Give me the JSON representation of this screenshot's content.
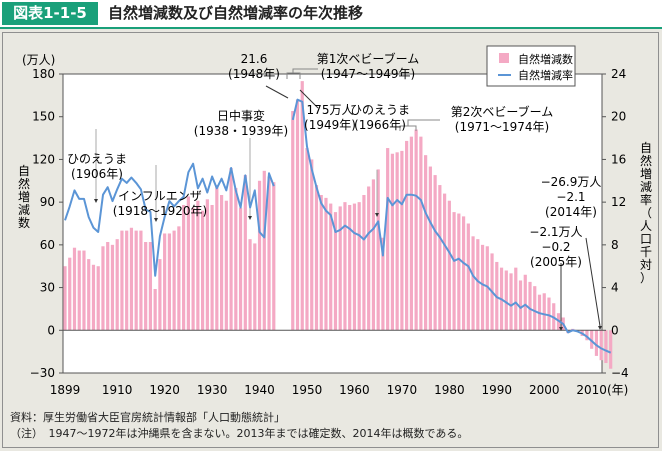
{
  "header": {
    "figure_label": "図表1-1-5",
    "title": "自然増減数及び自然増減率の年次推移"
  },
  "chart_data": {
    "type": "bar+line",
    "title": "自然増減数及び自然増減率の年次推移",
    "xlabel": "(年)",
    "ylabel_left": "自然増減数",
    "ylabel_left_unit": "(万人)",
    "ylabel_right": "自然増減率（人口千対）",
    "ylim_left": [
      -30,
      180
    ],
    "ylim_right": [
      -4,
      24
    ],
    "yticks_left": [
      180,
      150,
      120,
      90,
      60,
      30,
      0,
      -30
    ],
    "yticks_right": [
      24,
      20,
      16,
      12,
      8,
      4,
      0,
      -4
    ],
    "xticks": [
      "1899",
      "1910",
      "1920",
      "1930",
      "1940",
      "1950",
      "1960",
      "1970",
      "1980",
      "1990",
      "2000",
      "2010"
    ],
    "x_range": [
      1899,
      2014
    ],
    "grid": false,
    "legend": {
      "position": "top-right",
      "entries": [
        {
          "label": "自然増減数",
          "type": "bar",
          "color": "#f4a9c4"
        },
        {
          "label": "自然増減率",
          "type": "line",
          "color": "#5b95d6"
        }
      ]
    },
    "series": [
      {
        "name": "自然増減数",
        "type": "bar",
        "unit": "万人",
        "axis": "left",
        "x": [
          1899,
          1900,
          1901,
          1902,
          1903,
          1904,
          1905,
          1906,
          1907,
          1908,
          1909,
          1910,
          1911,
          1912,
          1913,
          1914,
          1915,
          1916,
          1917,
          1918,
          1919,
          1920,
          1921,
          1922,
          1923,
          1924,
          1925,
          1926,
          1927,
          1928,
          1929,
          1930,
          1931,
          1932,
          1933,
          1934,
          1935,
          1936,
          1937,
          1938,
          1939,
          1940,
          1941,
          1942,
          1943,
          1947,
          1948,
          1949,
          1950,
          1951,
          1952,
          1953,
          1954,
          1955,
          1956,
          1957,
          1958,
          1959,
          1960,
          1961,
          1962,
          1963,
          1964,
          1965,
          1966,
          1967,
          1968,
          1969,
          1970,
          1971,
          1972,
          1973,
          1974,
          1975,
          1976,
          1977,
          1978,
          1979,
          1980,
          1981,
          1982,
          1983,
          1984,
          1985,
          1986,
          1987,
          1988,
          1989,
          1990,
          1991,
          1992,
          1993,
          1994,
          1995,
          1996,
          1997,
          1998,
          1999,
          2000,
          2001,
          2002,
          2003,
          2004,
          2005,
          2006,
          2007,
          2008,
          2009,
          2010,
          2011,
          2012,
          2013,
          2014
        ],
        "values": [
          45,
          51,
          58,
          56,
          56,
          50,
          46,
          45,
          59,
          62,
          60,
          64,
          70,
          70,
          72,
          70,
          70,
          62,
          62,
          29,
          50,
          68,
          68,
          70,
          73,
          88,
          94,
          86,
          91,
          84,
          92,
          88,
          102,
          95,
          91,
          114,
          100,
          86,
          109,
          64,
          61,
          105,
          112,
          108,
          104,
          154,
          162,
          175,
          128,
          120,
          102,
          95,
          93,
          89,
          83,
          87,
          90,
          88,
          89,
          90,
          95,
          101,
          106,
          113,
          65,
          128,
          124,
          125,
          126,
          133,
          136,
          141,
          136,
          123,
          115,
          109,
          102,
          96,
          91,
          83,
          82,
          80,
          75,
          66,
          64,
          60,
          59,
          54,
          48,
          44,
          42,
          40,
          44,
          35,
          39,
          34,
          31,
          25,
          26,
          23,
          19,
          12,
          9,
          -2,
          1,
          -1,
          -4,
          -7,
          -13,
          -18,
          -21,
          -23,
          -27
        ]
      },
      {
        "name": "自然増減率",
        "type": "line",
        "unit": "人口千対",
        "axis": "right",
        "x": [
          1899,
          1900,
          1901,
          1902,
          1903,
          1904,
          1905,
          1906,
          1907,
          1908,
          1909,
          1910,
          1911,
          1912,
          1913,
          1914,
          1915,
          1916,
          1917,
          1918,
          1919,
          1920,
          1921,
          1922,
          1923,
          1924,
          1925,
          1926,
          1927,
          1928,
          1929,
          1930,
          1931,
          1932,
          1933,
          1934,
          1935,
          1936,
          1937,
          1938,
          1939,
          1940,
          1941,
          1942,
          1943,
          1947,
          1948,
          1949,
          1950,
          1951,
          1952,
          1953,
          1954,
          1955,
          1956,
          1957,
          1958,
          1959,
          1960,
          1961,
          1962,
          1963,
          1964,
          1965,
          1966,
          1967,
          1968,
          1969,
          1970,
          1971,
          1972,
          1973,
          1974,
          1975,
          1976,
          1977,
          1978,
          1979,
          1980,
          1981,
          1982,
          1983,
          1984,
          1985,
          1986,
          1987,
          1988,
          1989,
          1990,
          1991,
          1992,
          1993,
          1994,
          1995,
          1996,
          1997,
          1998,
          1999,
          2000,
          2001,
          2002,
          2003,
          2004,
          2005,
          2006,
          2007,
          2008,
          2009,
          2010,
          2011,
          2012,
          2013,
          2014
        ],
        "values": [
          10.3,
          11.6,
          13.1,
          12.3,
          12.3,
          10.6,
          9.6,
          9.2,
          12.7,
          13.4,
          12.1,
          13.2,
          14.2,
          13.8,
          14.3,
          13.8,
          13.2,
          11.3,
          11.1,
          5.1,
          8.8,
          10.6,
          12.1,
          11.6,
          12.1,
          12.5,
          14.8,
          15.6,
          13.3,
          14.2,
          12.9,
          14.4,
          13.3,
          14.2,
          13.1,
          15.2,
          13.1,
          11.5,
          14.5,
          11.5,
          13.1,
          9.2,
          8.7,
          14.7,
          13.5,
          19.7,
          21.6,
          21.4,
          17.2,
          15.1,
          13.4,
          11.9,
          11.2,
          10.8,
          9.2,
          9.4,
          9.8,
          9.5,
          9.1,
          8.9,
          8.5,
          9.1,
          9.5,
          10.2,
          7.0,
          12.4,
          11.7,
          12.2,
          11.8,
          12.7,
          12.7,
          12.6,
          12.2,
          11.0,
          10.1,
          9.3,
          8.7,
          8.0,
          7.3,
          6.5,
          6.7,
          6.3,
          6.0,
          5.1,
          4.6,
          4.3,
          4.1,
          3.6,
          3.1,
          2.9,
          2.6,
          2.3,
          2.6,
          2.1,
          2.4,
          2.0,
          1.8,
          1.6,
          1.5,
          1.4,
          1.2,
          0.9,
          0.6,
          -0.2,
          0.0,
          -0.1,
          -0.3,
          -0.6,
          -1.0,
          -1.4,
          -1.7,
          -1.9,
          -2.1
        ]
      }
    ],
    "annotations": [
      {
        "id": "hinoeuma1906",
        "lines": [
          "ひのえうま",
          "(1906年)"
        ],
        "year": 1906
      },
      {
        "id": "influenza",
        "lines": [
          "インフルエンザ",
          "(1918〜1920年)"
        ],
        "year": 1918
      },
      {
        "id": "nicchu",
        "lines": [
          "日中事変",
          "(1938・1939年)"
        ],
        "year": 1939
      },
      {
        "id": "rate1948",
        "lines": [
          "21.6",
          "(1948年)"
        ],
        "year": 1948
      },
      {
        "id": "babyboom1",
        "lines": [
          "第1次ベビーブーム",
          "(1947〜1949年)"
        ],
        "year": 1948
      },
      {
        "id": "peak1949",
        "lines": [
          "175万人",
          "(1949年)"
        ],
        "year": 1949
      },
      {
        "id": "hinoeuma1966",
        "lines": [
          "ひのえうま",
          "(1966年)"
        ],
        "year": 1966
      },
      {
        "id": "babyboom2",
        "lines": [
          "第2次ベビーブーム",
          "(1971〜1974年)"
        ],
        "year": 1972
      },
      {
        "id": "y2005",
        "lines": [
          "−2.1万人",
          "−0.2",
          "(2005年)"
        ],
        "year": 2005
      },
      {
        "id": "y2014",
        "lines": [
          "−26.9万人",
          "−2.1",
          "(2014年)"
        ],
        "year": 2014
      }
    ]
  },
  "footer": {
    "source": "資料：厚生労働省大臣官房統計情報部「人口動態統計」",
    "note": "（注）　1947〜1972年は沖縄県を含まない。2013年までは確定数、2014年は概数である。"
  }
}
